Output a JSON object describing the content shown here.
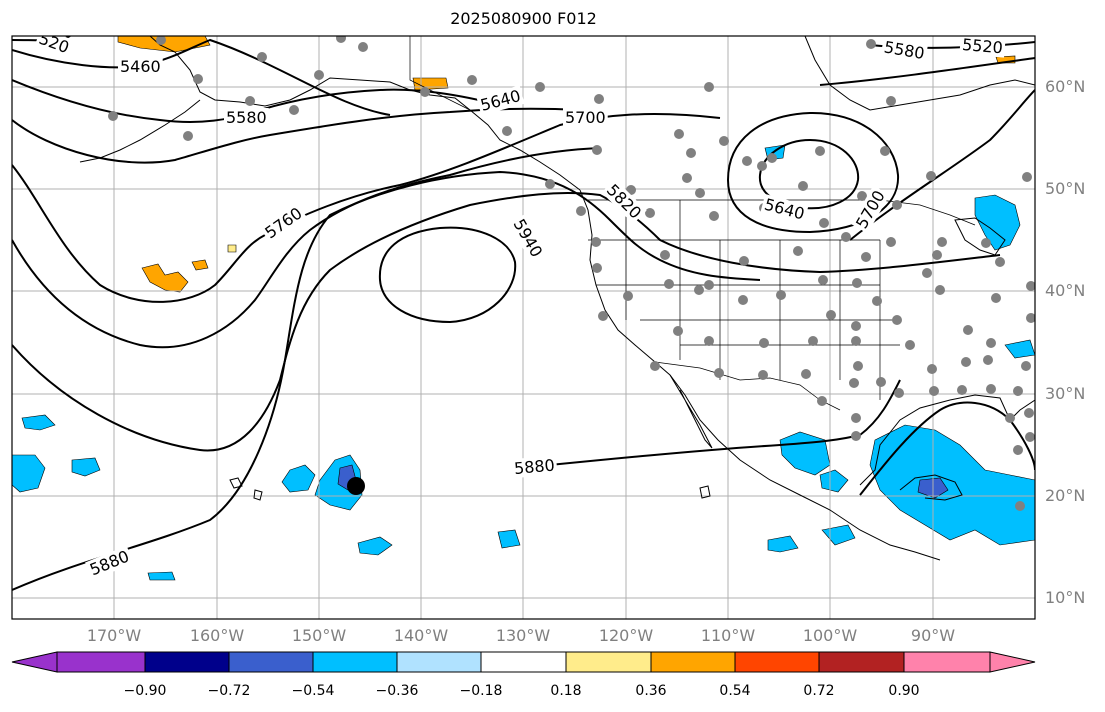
{
  "title": "2025080900 F012",
  "lat_labels": [
    "60°N",
    "50°N",
    "40°N",
    "30°N",
    "20°N",
    "10°N"
  ],
  "lon_labels": [
    "170°W",
    "160°W",
    "150°W",
    "140°W",
    "130°W",
    "120°W",
    "110°W",
    "100°W",
    "90°W"
  ],
  "contour_labels": [
    "520",
    "5460",
    "5580",
    "5640",
    "5700",
    "5760",
    "5820",
    "5940",
    "5880",
    "5880",
    "5640",
    "5700",
    "5580",
    "5520"
  ],
  "colorbar": {
    "tick_labels": [
      "−0.90",
      "−0.72",
      "−0.54",
      "−0.36",
      "−0.18",
      "0.18",
      "0.36",
      "0.54",
      "0.72",
      "0.90"
    ],
    "colors": [
      "#9932CC",
      "#00008B",
      "#3A5FCD",
      "#00BFFF",
      "#B0E2FF",
      "#FFFFFF",
      "#FFEC8B",
      "#FFA500",
      "#FF4500",
      "#B22222",
      "#FF82AB"
    ]
  },
  "palette": {
    "neg_cyan": "#00BFFF",
    "neg_blue": "#3A5FCD",
    "neg_purple": "#7B68EE",
    "pos_orange": "#FFA500",
    "pos_yellow": "#FFEC8B",
    "station": "#808080",
    "grid": "#b0b0b0"
  }
}
